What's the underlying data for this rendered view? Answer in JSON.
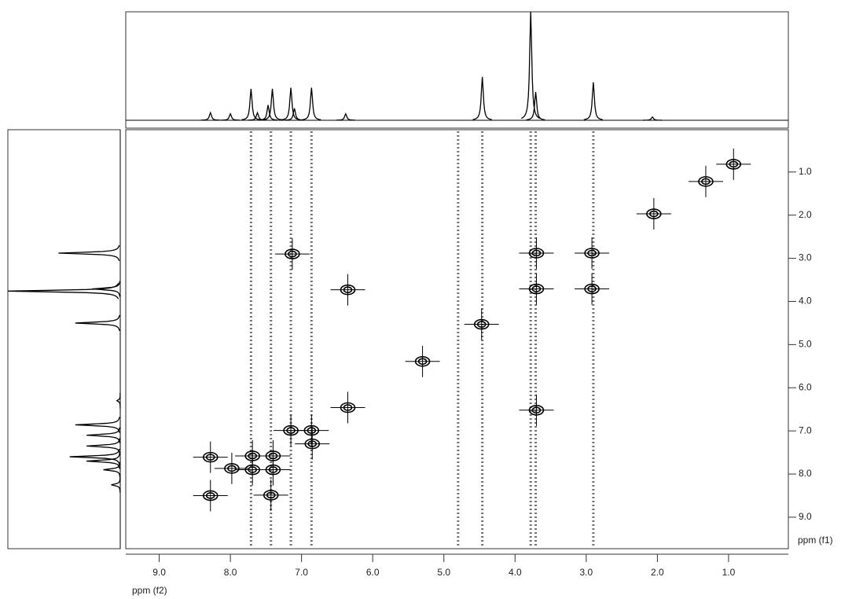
{
  "chart_data": {
    "type": "contour",
    "xlabel": "ppm (f2)",
    "ylabel": "ppm (f1)",
    "xlim": [
      9.47,
      0.16
    ],
    "ylim": [
      0.02,
      9.73
    ],
    "xticks": [
      {
        "value": 9,
        "label": "9.0"
      },
      {
        "value": 8,
        "label": "8.0"
      },
      {
        "value": 7,
        "label": "7.0"
      },
      {
        "value": 6,
        "label": "6.0"
      },
      {
        "value": 5,
        "label": "5.0"
      },
      {
        "value": 4,
        "label": "4.0"
      },
      {
        "value": 3,
        "label": "3.0"
      },
      {
        "value": 2,
        "label": "2.0"
      },
      {
        "value": 1,
        "label": "1.0"
      }
    ],
    "yticks": [
      {
        "value": 1,
        "label": "1.0"
      },
      {
        "value": 2,
        "label": "2.0"
      },
      {
        "value": 3,
        "label": "3.0"
      },
      {
        "value": 4,
        "label": "4.0"
      },
      {
        "value": 5,
        "label": "5.0"
      },
      {
        "value": 6,
        "label": "6.0"
      },
      {
        "value": 7,
        "label": "7.0"
      },
      {
        "value": 8,
        "label": "8.0"
      },
      {
        "value": 9,
        "label": "9.0"
      }
    ],
    "f2_projection": {
      "ppm": [
        8.28,
        8.0,
        7.71,
        7.62,
        7.47,
        7.41,
        7.15,
        7.1,
        6.86,
        6.38,
        4.46,
        3.78,
        3.71,
        2.9,
        2.07
      ],
      "intensity": [
        7,
        6,
        29,
        7,
        14,
        29,
        30,
        11,
        30,
        6,
        40,
        100,
        26,
        35,
        3
      ],
      "lim": [
        0,
        100
      ]
    },
    "f1_projection": {
      "ppm": [
        2.88,
        3.71,
        3.76,
        4.5,
        6.3,
        6.86,
        7.1,
        7.35,
        7.6,
        7.7,
        7.9,
        8.25
      ],
      "intensity": [
        55,
        25,
        100,
        40,
        3,
        40,
        30,
        30,
        45,
        30,
        15,
        8
      ],
      "lim": [
        0,
        100
      ]
    },
    "streaks": [
      7.71,
      7.43,
      7.15,
      6.86,
      4.8,
      4.46,
      3.78,
      3.71,
      2.9
    ],
    "cross_peaks": {
      "f2": [
        0.93,
        1.32,
        2.05,
        2.92,
        3.7,
        2.92,
        3.7,
        4.47,
        6.35,
        6.35,
        3.7,
        5.3,
        7.15,
        6.86,
        6.85,
        7.69,
        7.4,
        7.69,
        7.4,
        8.28,
        7.98,
        8.28,
        7.43,
        7.13
      ],
      "f1": [
        0.82,
        1.22,
        1.97,
        2.88,
        2.88,
        3.71,
        3.71,
        4.53,
        3.73,
        6.46,
        6.52,
        5.39,
        6.99,
        6.99,
        7.3,
        7.58,
        7.58,
        7.9,
        7.9,
        7.61,
        7.87,
        8.5,
        8.49,
        2.9
      ]
    }
  }
}
